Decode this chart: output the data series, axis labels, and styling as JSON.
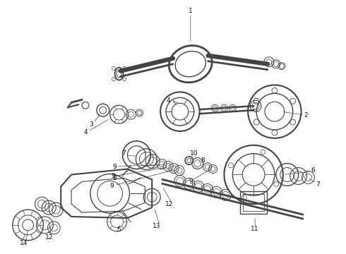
{
  "bg_color": "#ffffff",
  "line_color": "#444444",
  "label_color": "#111111",
  "fig_width": 4.9,
  "fig_height": 3.6,
  "dpi": 100
}
